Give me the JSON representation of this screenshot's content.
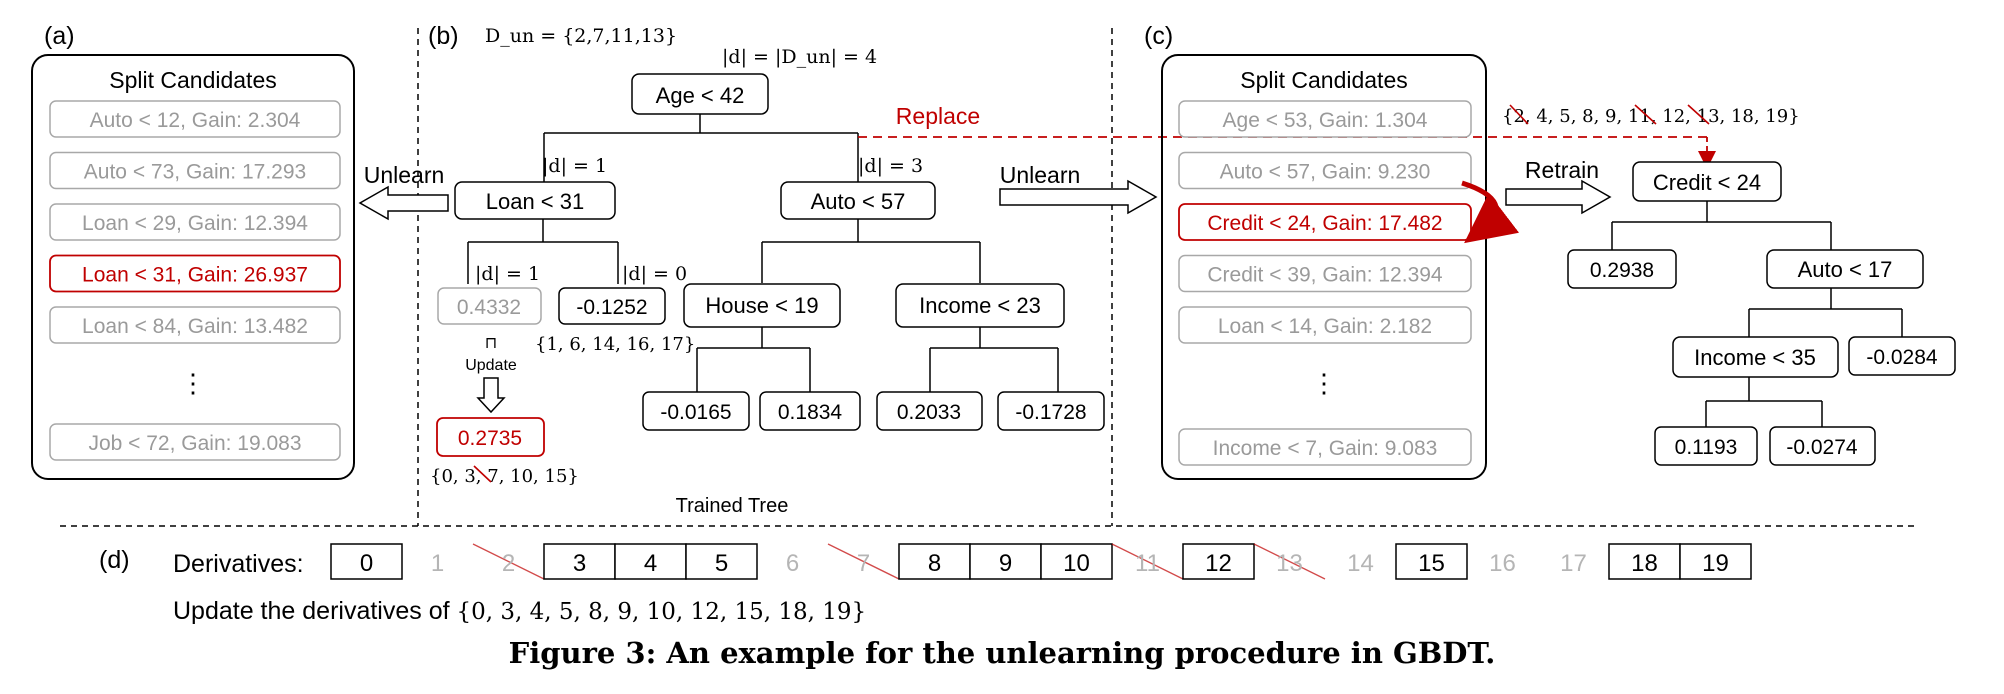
{
  "colors": {
    "accent": "#c00000",
    "gray_text": "#9a9a9a",
    "gray_border": "#a8a8a8",
    "black": "#000000"
  },
  "panel_a": {
    "label": "(a)",
    "title": "Split Candidates",
    "candidates": [
      {
        "text": "Auto < 12, Gain: 2.304",
        "state": "gray"
      },
      {
        "text": "Auto < 73, Gain: 17.293",
        "state": "gray"
      },
      {
        "text": "Loan < 29, Gain: 12.394",
        "state": "gray"
      },
      {
        "text": "Loan < 31, Gain: 26.937",
        "state": "selected"
      },
      {
        "text": "Loan < 84, Gain: 13.482",
        "state": "gray"
      }
    ],
    "ellipsis": "⋮",
    "last_candidate": "Job < 72, Gain: 19.083",
    "unlearn_label": "Unlearn"
  },
  "panel_b": {
    "label": "(b)",
    "dun_set": "D_un = {2,7,11,13}",
    "root_count": "|d| = |D_un| = 4",
    "root": "Age < 42",
    "left_count": "|d| = 1",
    "right_count": "|d| = 3",
    "left_node": "Loan < 31",
    "right_node": "Auto < 57",
    "left_left_count": "|d| = 1",
    "left_right_count": "|d| = 0",
    "leaf_old": "0.4332",
    "leaf_neg": "-0.1252",
    "leaf_neg_set": "{1, 6, 14, 16, 17}",
    "update_label": "Update",
    "leaf_new": "0.2735",
    "leaf_new_set": "{0, 3, 7, 10, 15}",
    "house_node": "House < 19",
    "income_node": "Income < 23",
    "house_leaves": [
      "-0.0165",
      "0.1834"
    ],
    "income_leaves": [
      "0.2033",
      "-0.1728"
    ],
    "replace_label": "Replace",
    "unlearn_label": "Unlearn",
    "caption": "Trained Tree"
  },
  "panel_c": {
    "label": "(c)",
    "title": "Split Candidates",
    "candidates": [
      {
        "text": "Age < 53, Gain: 1.304",
        "state": "gray"
      },
      {
        "text": "Auto < 57, Gain: 9.230",
        "state": "gray"
      },
      {
        "text": "Credit < 24, Gain: 17.482",
        "state": "selected"
      },
      {
        "text": "Credit < 39, Gain: 12.394",
        "state": "gray"
      },
      {
        "text": "Loan < 14, Gain: 2.182",
        "state": "gray"
      }
    ],
    "ellipsis": "⋮",
    "last_candidate": "Income < 7, Gain: 9.083",
    "retrain_label": "Retrain",
    "retrain_set": "{2, 4, 5, 8, 9, 11, 12, 13, 18, 19}",
    "retrain_root": "Credit < 24",
    "retrain_leaf_left": "0.2938",
    "retrain_auto": "Auto < 17",
    "retrain_income": "Income < 35",
    "retrain_leaf_auto_right": "-0.0284",
    "retrain_income_leaves": [
      "0.1193",
      "-0.0274"
    ]
  },
  "panel_d": {
    "label": "(d)",
    "derivatives_label": "Derivatives:",
    "cells": [
      {
        "v": "0",
        "s": "on"
      },
      {
        "v": "1",
        "s": "off"
      },
      {
        "v": "2",
        "s": "deleted"
      },
      {
        "v": "3",
        "s": "on"
      },
      {
        "v": "4",
        "s": "on"
      },
      {
        "v": "5",
        "s": "on"
      },
      {
        "v": "6",
        "s": "off"
      },
      {
        "v": "7",
        "s": "deleted"
      },
      {
        "v": "8",
        "s": "on"
      },
      {
        "v": "9",
        "s": "on"
      },
      {
        "v": "10",
        "s": "on"
      },
      {
        "v": "11",
        "s": "deleted"
      },
      {
        "v": "12",
        "s": "on"
      },
      {
        "v": "13",
        "s": "deleted"
      },
      {
        "v": "14",
        "s": "off"
      },
      {
        "v": "15",
        "s": "on"
      },
      {
        "v": "16",
        "s": "off"
      },
      {
        "v": "17",
        "s": "off"
      },
      {
        "v": "18",
        "s": "on"
      },
      {
        "v": "19",
        "s": "on"
      }
    ],
    "update_prefix": "Update the derivatives of ",
    "update_set": "{0, 3, 4, 5, 8, 9, 10, 12, 15, 18, 19}"
  },
  "figure_caption": "Figure 3: An example for the unlearning procedure in GBDT."
}
